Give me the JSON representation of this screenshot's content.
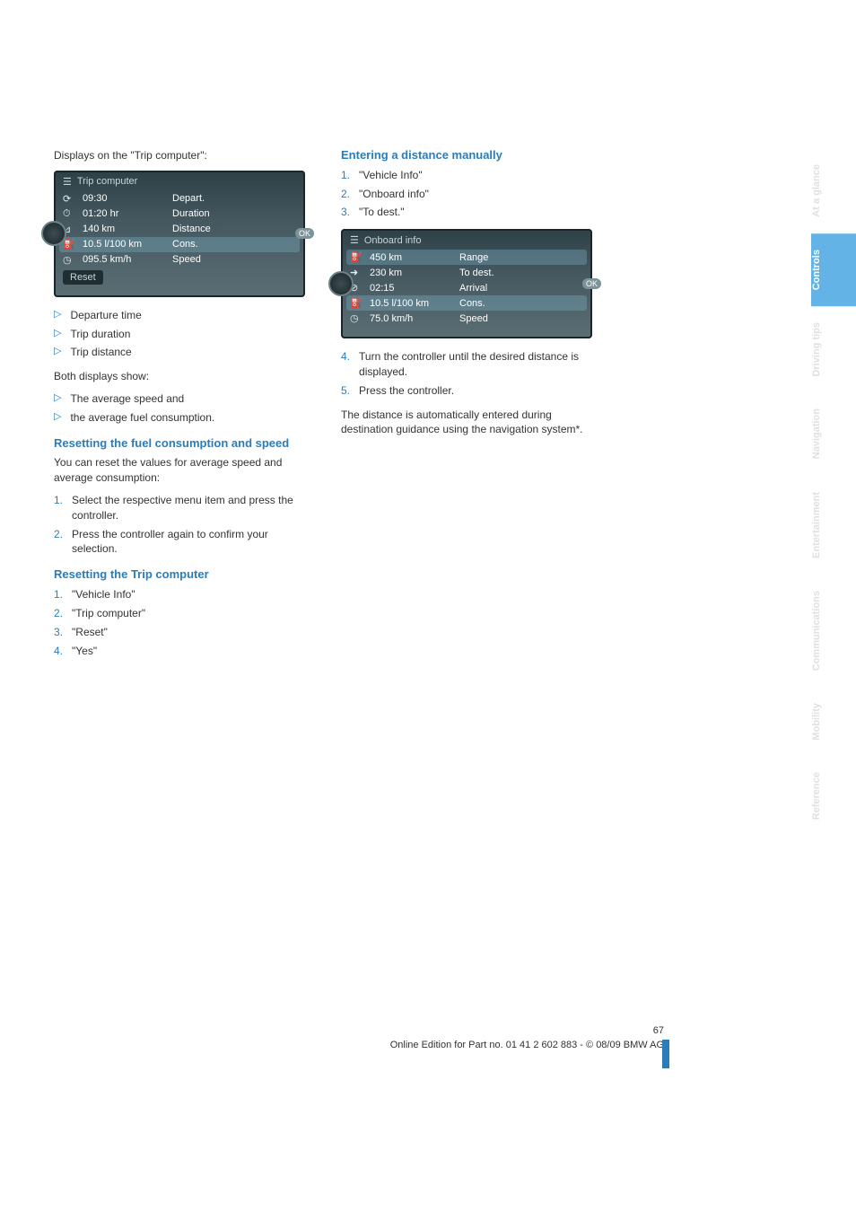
{
  "leftCol": {
    "intro": "Displays on the \"Trip computer\":",
    "screenshot1": {
      "title": "Trip computer",
      "rows": [
        {
          "icon": "⟳",
          "val": "09:30",
          "lbl": "Depart.",
          "hl": false
        },
        {
          "icon": "⏱",
          "val": "01:20  hr",
          "lbl": "Duration",
          "hl": false
        },
        {
          "icon": "⊿",
          "val": "140    km",
          "lbl": "Distance",
          "hl": false
        },
        {
          "icon": "⛽",
          "val": "10.5 l/100 km",
          "lbl": "Cons.",
          "hl": true
        },
        {
          "icon": "◷",
          "val": "095.5 km/h",
          "lbl": "Speed",
          "hl": false
        }
      ],
      "reset": "Reset"
    },
    "bullets1": [
      "Departure time",
      "Trip duration",
      "Trip distance"
    ],
    "both": "Both displays show:",
    "bullets2": [
      "The average speed and",
      "the average fuel consumption."
    ],
    "h_reset_fuel": "Resetting the fuel consumption and speed",
    "reset_fuel_intro": "You can reset the values for average speed and average consumption:",
    "reset_fuel_steps": [
      "Select the respective menu item and press the controller.",
      "Press the controller again to confirm your selection."
    ],
    "h_reset_trip": "Resetting the Trip computer",
    "reset_trip_steps": [
      "\"Vehicle Info\"",
      "\"Trip computer\"",
      "\"Reset\"",
      "\"Yes\""
    ]
  },
  "rightCol": {
    "h_enter": "Entering a distance manually",
    "enter_steps1": [
      "\"Vehicle Info\"",
      "\"Onboard info\"",
      "\"To dest.\""
    ],
    "screenshot2": {
      "title": "Onboard info",
      "rows": [
        {
          "icon": "⛽",
          "val": "450  km",
          "lbl": "Range",
          "hl": true
        },
        {
          "icon": "➜",
          "val": "230  km",
          "lbl": "To dest.",
          "hl": false
        },
        {
          "icon": "⊘",
          "val": "02:15",
          "lbl": "Arrival",
          "hl": false
        },
        {
          "icon": "⛽",
          "val": "10.5 l/100 km",
          "lbl": "Cons.",
          "hl": true
        },
        {
          "icon": "◷",
          "val": "75.0 km/h",
          "lbl": "Speed",
          "hl": false
        }
      ]
    },
    "enter_steps2": [
      {
        "n": "4.",
        "t": "Turn the controller until the desired distance is displayed."
      },
      {
        "n": "5.",
        "t": "Press the controller."
      }
    ],
    "outro": "The distance is automatically entered during destination guidance using the navigation system*."
  },
  "tabs": [
    {
      "label": "At a glance",
      "active": false
    },
    {
      "label": "Controls",
      "active": true
    },
    {
      "label": "Driving tips",
      "active": false
    },
    {
      "label": "Navigation",
      "active": false
    },
    {
      "label": "Entertainment",
      "active": false
    },
    {
      "label": "Communications",
      "active": false
    },
    {
      "label": "Mobility",
      "active": false
    },
    {
      "label": "Reference",
      "active": false
    }
  ],
  "footer": {
    "page": "67",
    "line": "Online Edition for Part no. 01 41 2 602 883 - © 08/09 BMW AG"
  },
  "colors": {
    "accent": "#2a7db8",
    "tab": "#63b3e6"
  }
}
